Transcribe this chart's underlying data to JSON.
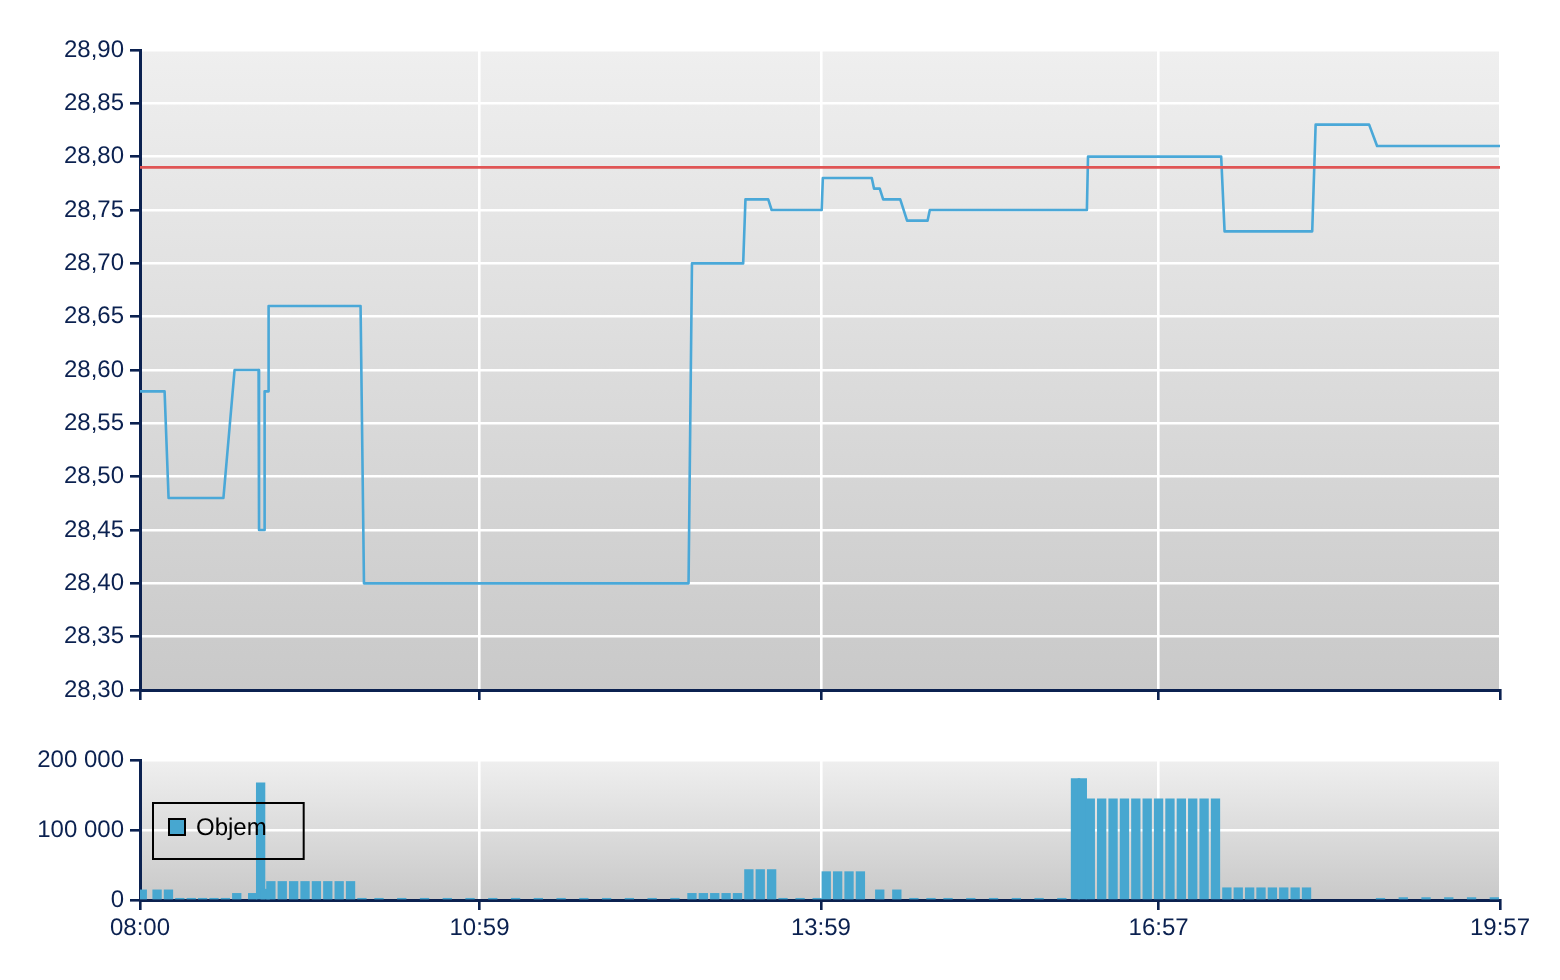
{
  "chart_data": [
    {
      "type": "line",
      "xlim": [
        8,
        19.95
      ],
      "xticks": [
        {
          "value": 8,
          "label": null
        },
        {
          "value": 10.983,
          "label": null
        },
        {
          "value": 13.983,
          "label": null
        },
        {
          "value": 16.95,
          "label": null
        },
        {
          "value": 19.95,
          "label": null
        }
      ],
      "ylim": [
        28.3,
        28.9
      ],
      "yticks": [
        {
          "value": 28.3,
          "label": "28,30"
        },
        {
          "value": 28.35,
          "label": "28,35"
        },
        {
          "value": 28.4,
          "label": "28,40"
        },
        {
          "value": 28.45,
          "label": "28,45"
        },
        {
          "value": 28.5,
          "label": "28,50"
        },
        {
          "value": 28.55,
          "label": "28,55"
        },
        {
          "value": 28.6,
          "label": "28,60"
        },
        {
          "value": 28.65,
          "label": "28,65"
        },
        {
          "value": 28.7,
          "label": "28,70"
        },
        {
          "value": 28.75,
          "label": "28,75"
        },
        {
          "value": 28.8,
          "label": "28,80"
        },
        {
          "value": 28.85,
          "label": "28,85"
        },
        {
          "value": 28.9,
          "label": "28,90"
        }
      ],
      "tick_labels": "y",
      "grid": true,
      "ref_lines": [
        {
          "axis": "y",
          "value": 28.79,
          "color": "#e05555"
        }
      ],
      "x": [
        8.0,
        8.216,
        8.251,
        8.733,
        8.831,
        9.042,
        9.046,
        9.09,
        9.095,
        9.125,
        9.13,
        9.938,
        9.968,
        12.82,
        12.85,
        13.3,
        13.32,
        13.52,
        13.55,
        13.99,
        14.0,
        14.43,
        14.45,
        14.5,
        14.53,
        14.68,
        14.74,
        14.92,
        14.94,
        16.32,
        16.33,
        17.5,
        17.53,
        18.3,
        18.33,
        18.8,
        18.87,
        19.95
      ],
      "series": [
        {
          "color": "#4aa8d8",
          "values": [
            28.58,
            28.58,
            28.48,
            28.48,
            28.6,
            28.6,
            28.45,
            28.45,
            28.58,
            28.58,
            28.66,
            28.66,
            28.4,
            28.4,
            28.7,
            28.7,
            28.76,
            28.76,
            28.75,
            28.75,
            28.78,
            28.78,
            28.77,
            28.77,
            28.76,
            28.76,
            28.74,
            28.74,
            28.75,
            28.75,
            28.8,
            28.8,
            28.73,
            28.73,
            28.83,
            28.83,
            28.81,
            28.81
          ]
        }
      ]
    },
    {
      "type": "bar",
      "xlim": [
        8,
        19.95
      ],
      "xticks": [
        {
          "value": 8,
          "label": "08:00"
        },
        {
          "value": 10.983,
          "label": "10:59"
        },
        {
          "value": 13.983,
          "label": "13:59"
        },
        {
          "value": 16.95,
          "label": "16:57"
        },
        {
          "value": 19.95,
          "label": "19:57"
        }
      ],
      "ylim": [
        0,
        200000
      ],
      "yticks": [
        {
          "value": 0,
          "label": "0"
        },
        {
          "value": 100000,
          "label": "100 000"
        },
        {
          "value": 200000,
          "label": "200 000"
        }
      ],
      "grid": true,
      "legend": "left",
      "x": [
        8.02,
        8.15,
        8.25,
        8.35,
        8.45,
        8.55,
        8.65,
        8.75,
        8.85,
        8.99,
        9.06,
        9.1,
        9.15,
        9.25,
        9.35,
        9.45,
        9.55,
        9.65,
        9.75,
        9.85,
        9.95,
        10.1,
        10.3,
        10.5,
        10.7,
        10.9,
        11.1,
        11.3,
        11.5,
        11.7,
        11.9,
        12.1,
        12.3,
        12.5,
        12.7,
        12.85,
        12.95,
        13.05,
        13.15,
        13.25,
        13.35,
        13.45,
        13.55,
        13.65,
        13.8,
        13.95,
        14.03,
        14.13,
        14.23,
        14.33,
        14.5,
        14.65,
        14.8,
        14.95,
        15.1,
        15.3,
        15.5,
        15.7,
        15.9,
        16.1,
        16.22,
        16.28,
        16.35,
        16.45,
        16.55,
        16.65,
        16.75,
        16.85,
        16.95,
        17.05,
        17.15,
        17.25,
        17.35,
        17.45,
        17.55,
        17.65,
        17.75,
        17.85,
        17.95,
        18.05,
        18.15,
        18.25,
        18.9,
        19.1,
        19.3,
        19.5,
        19.7,
        19.9
      ],
      "series": [
        {
          "name": "Objem",
          "color": "#47a7d0",
          "values": [
            14000,
            14000,
            14000,
            2000,
            2000,
            2000,
            2000,
            2000,
            9000,
            9000,
            167000,
            15000,
            26000,
            26000,
            26000,
            26000,
            26000,
            26000,
            26000,
            26000,
            2000,
            2000,
            2000,
            2000,
            2000,
            2000,
            2000,
            2000,
            2000,
            2000,
            2000,
            2000,
            2000,
            2000,
            2000,
            9000,
            9000,
            9000,
            9000,
            9000,
            43000,
            43000,
            43000,
            2000,
            2000,
            2000,
            40000,
            40000,
            40000,
            40000,
            14000,
            14000,
            2000,
            2000,
            2000,
            2000,
            2000,
            2000,
            2000,
            2000,
            173000,
            173000,
            144000,
            144000,
            144000,
            144000,
            144000,
            144000,
            144000,
            144000,
            144000,
            144000,
            144000,
            144000,
            17000,
            17000,
            17000,
            17000,
            17000,
            17000,
            17000,
            17000,
            2000,
            3000,
            3000,
            3000,
            3000,
            3000
          ]
        }
      ]
    }
  ]
}
